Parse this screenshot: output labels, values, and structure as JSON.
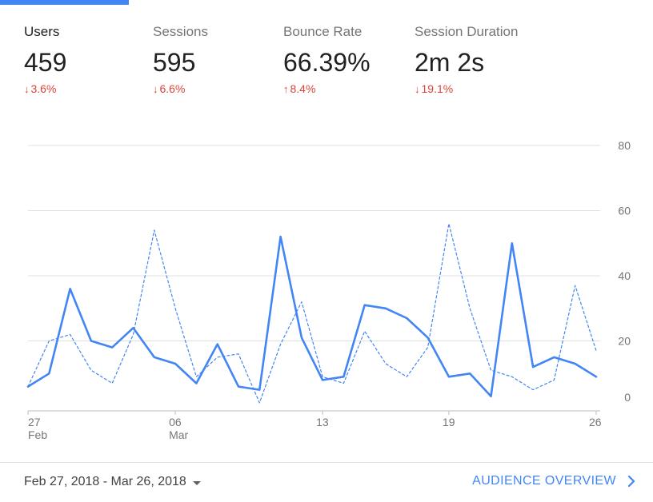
{
  "colors": {
    "accent": "#4285f4",
    "negative": "#db4437",
    "gridline": "#e0e0e0"
  },
  "metrics": [
    {
      "label": "Users",
      "value": "459",
      "change": "3.6%",
      "direction": "down",
      "active": true
    },
    {
      "label": "Sessions",
      "value": "595",
      "change": "6.6%",
      "direction": "down",
      "active": false
    },
    {
      "label": "Bounce Rate",
      "value": "66.39%",
      "change": "8.4%",
      "direction": "up",
      "active": false
    },
    {
      "label": "Session Duration",
      "value": "2m 2s",
      "change": "19.1%",
      "direction": "down",
      "active": false
    }
  ],
  "chart_data": {
    "type": "line",
    "ylim": [
      0,
      80
    ],
    "y_ticks": [
      "0",
      "20",
      "40",
      "60",
      "80"
    ],
    "x_ticks": [
      {
        "index": 0,
        "label": "27",
        "sublabel": "Feb"
      },
      {
        "index": 7,
        "label": "06",
        "sublabel": "Mar"
      },
      {
        "index": 14,
        "label": "13",
        "sublabel": ""
      },
      {
        "index": 20,
        "label": "19",
        "sublabel": ""
      },
      {
        "index": 27,
        "label": "26",
        "sublabel": ""
      }
    ],
    "x": [
      "Feb 27",
      "Feb 28",
      "Mar 1",
      "Mar 2",
      "Mar 3",
      "Mar 4",
      "Mar 5",
      "Mar 6",
      "Mar 7",
      "Mar 8",
      "Mar 9",
      "Mar 10",
      "Mar 11",
      "Mar 12",
      "Mar 13",
      "Mar 14",
      "Mar 15",
      "Mar 16",
      "Mar 17",
      "Mar 18",
      "Mar 19",
      "Mar 20",
      "Mar 21",
      "Mar 22",
      "Mar 23",
      "Mar 24",
      "Mar 25",
      "Mar 26"
    ],
    "grid": true,
    "series": [
      {
        "style": "solid",
        "values": [
          6,
          10,
          36,
          20,
          18,
          24,
          15,
          13,
          7,
          19,
          6,
          5,
          52,
          21,
          8,
          9,
          31,
          30,
          27,
          21,
          9,
          10,
          3,
          50,
          12,
          15,
          13,
          9
        ]
      },
      {
        "style": "dashed",
        "values": [
          6,
          20,
          22,
          11,
          7,
          22,
          54,
          30,
          9,
          15,
          16,
          1,
          19,
          32,
          9,
          7,
          23,
          13,
          9,
          18,
          56,
          30,
          11,
          9,
          5,
          8,
          37,
          17
        ]
      }
    ]
  },
  "footer": {
    "date_range": "Feb 27, 2018 - Mar 26, 2018",
    "link_label": "AUDIENCE OVERVIEW"
  }
}
